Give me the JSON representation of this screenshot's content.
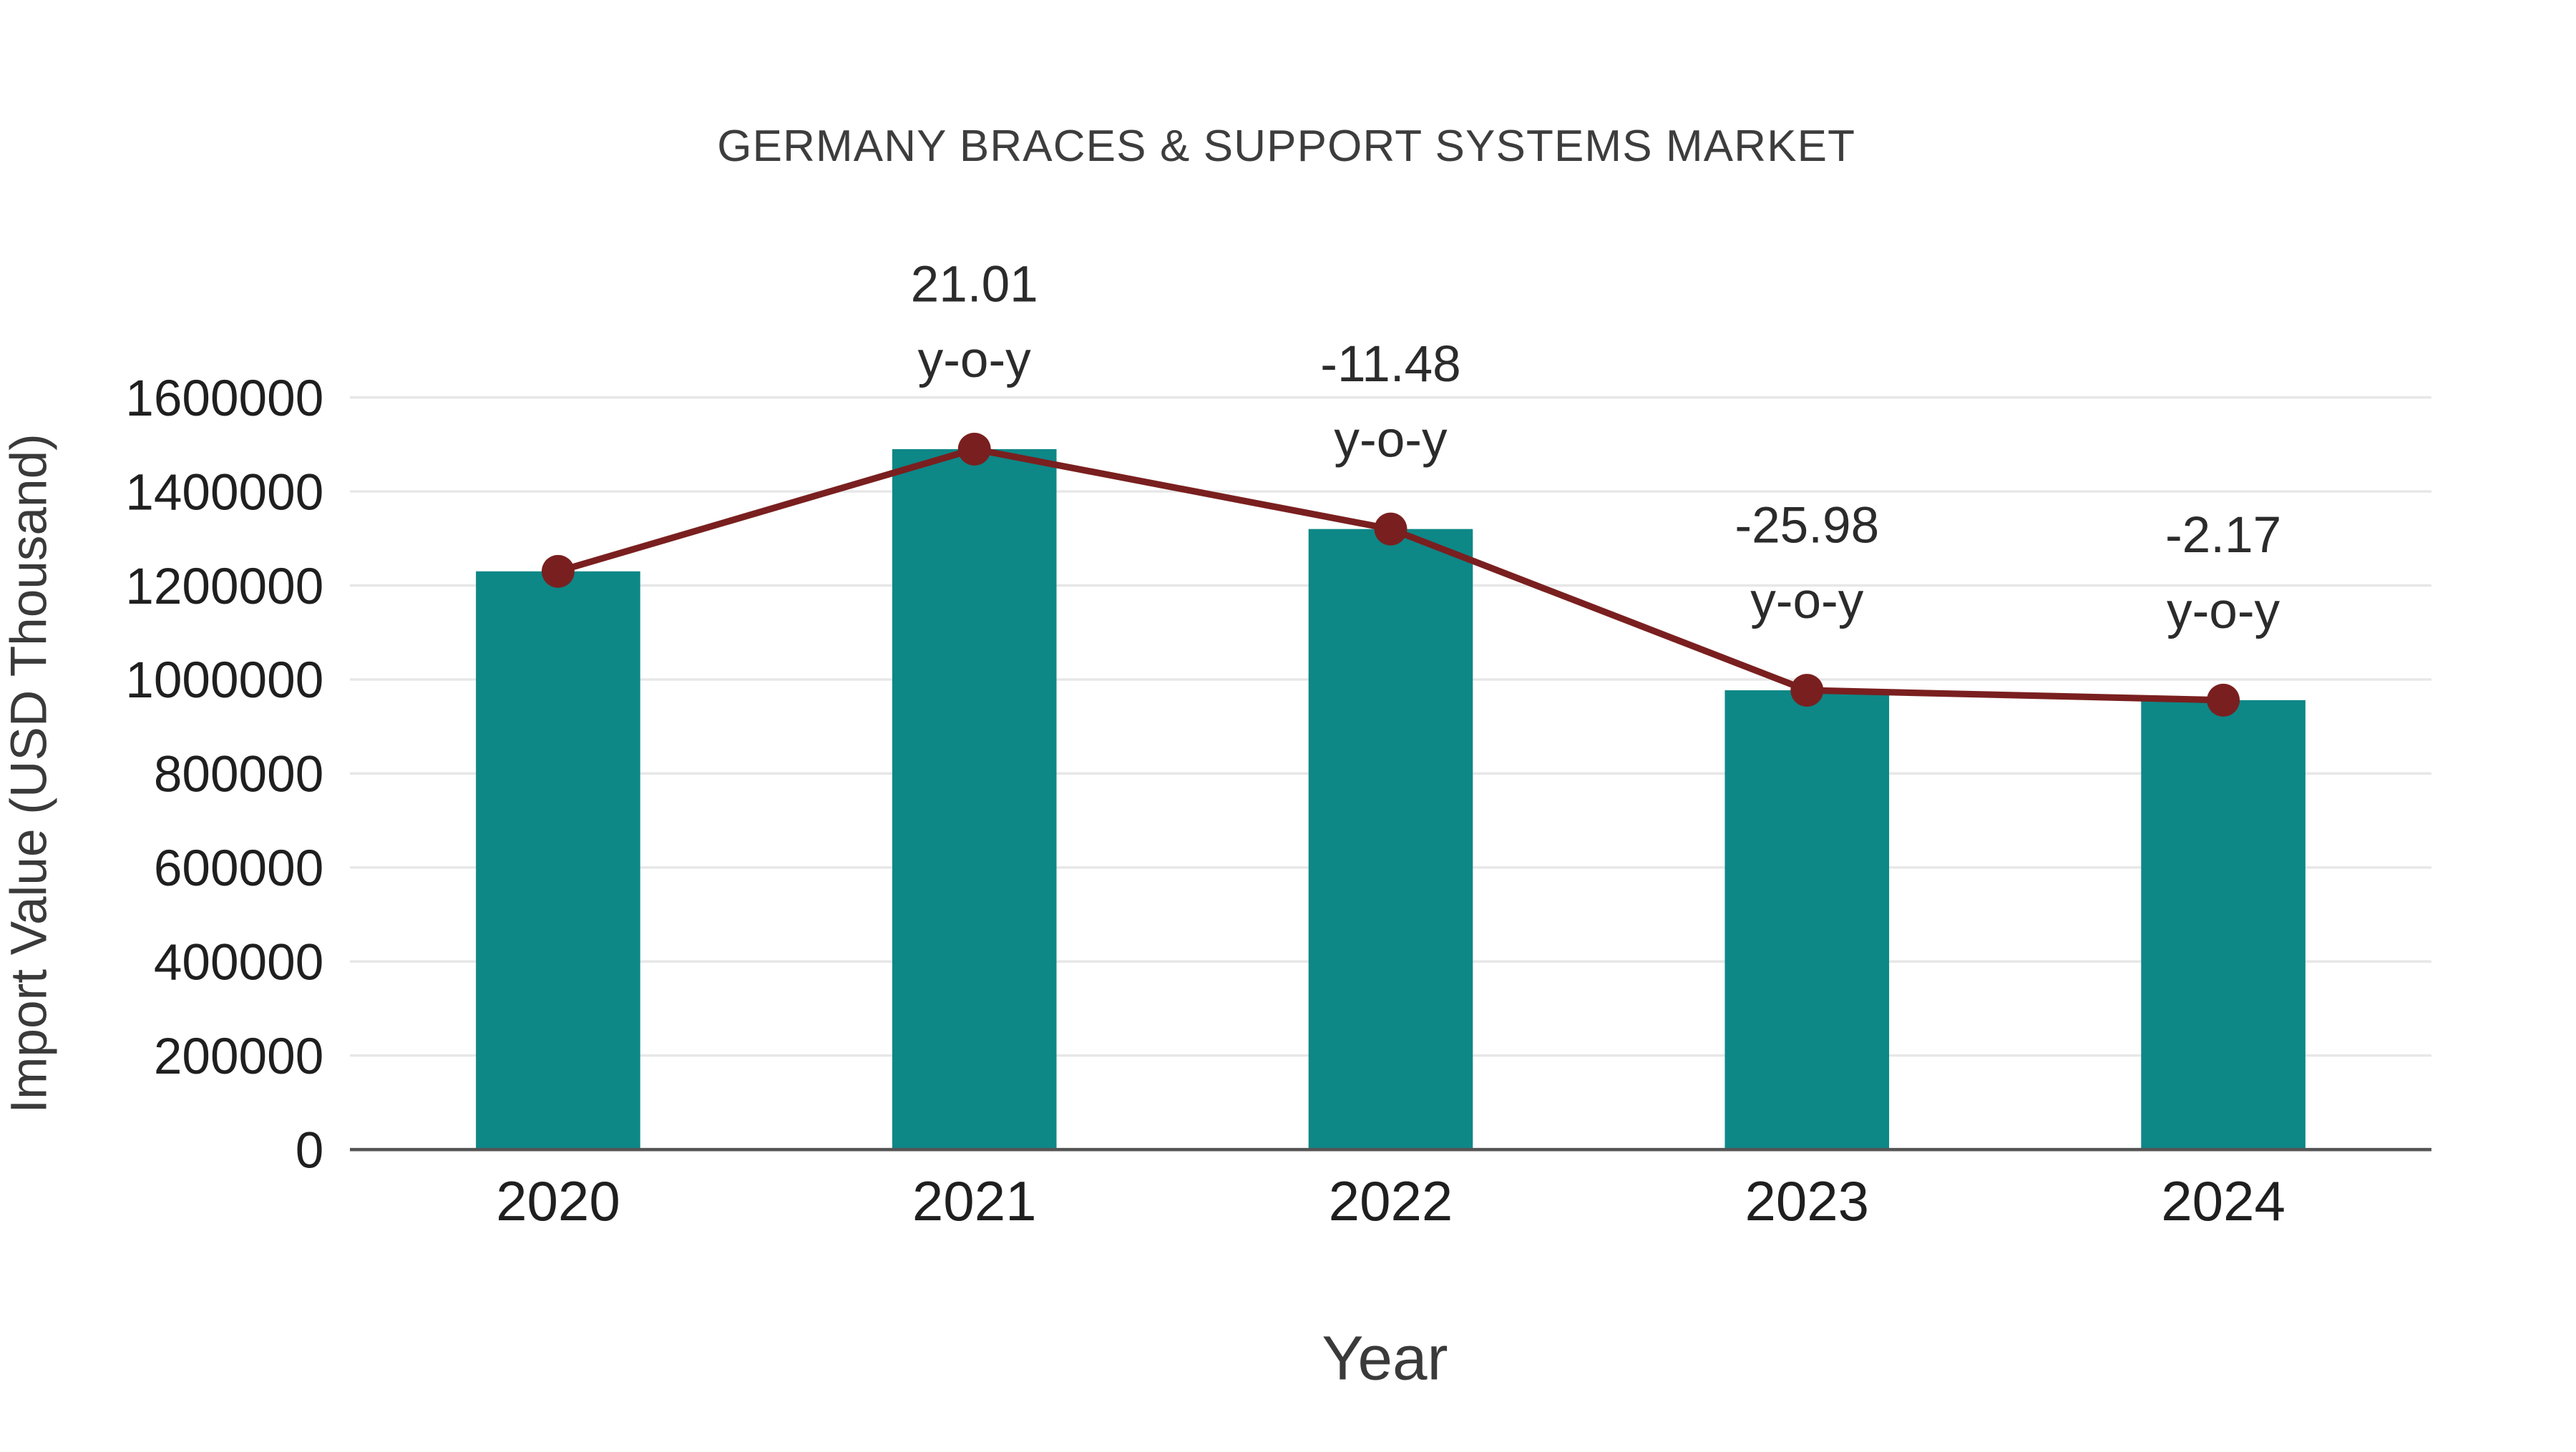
{
  "chart_data": {
    "type": "bar",
    "title": "GERMANY BRACES & SUPPORT SYSTEMS MARKET",
    "xlabel": "Year",
    "ylabel": "Import Value (USD Thousand)",
    "categories": [
      "2020",
      "2021",
      "2022",
      "2023",
      "2024"
    ],
    "series": [
      {
        "name": "Import Value",
        "type": "bar",
        "values": [
          1230000,
          1490000,
          1320000,
          977000,
          956000
        ]
      },
      {
        "name": "y-o-y change",
        "type": "line",
        "values": [
          1230000,
          1490000,
          1320000,
          977000,
          956000
        ]
      }
    ],
    "yoy_labels": [
      null,
      "21.01",
      "-11.48",
      "-25.98",
      "-2.17"
    ],
    "yoy_suffix": "y-o-y",
    "ylim": [
      0,
      1600000
    ],
    "ytick_step": 200000,
    "ytick_labels": [
      "0",
      "200000",
      "400000",
      "600000",
      "800000",
      "1000000",
      "1200000",
      "1400000",
      "1600000"
    ],
    "grid": true,
    "legend_position": "none"
  },
  "colors": {
    "bar": "#0e8787",
    "line": "#7a1f1f",
    "marker": "#7a1f1f",
    "grid": "#e7e7e7",
    "axis": "#555555",
    "text": "#2f2f2f"
  }
}
